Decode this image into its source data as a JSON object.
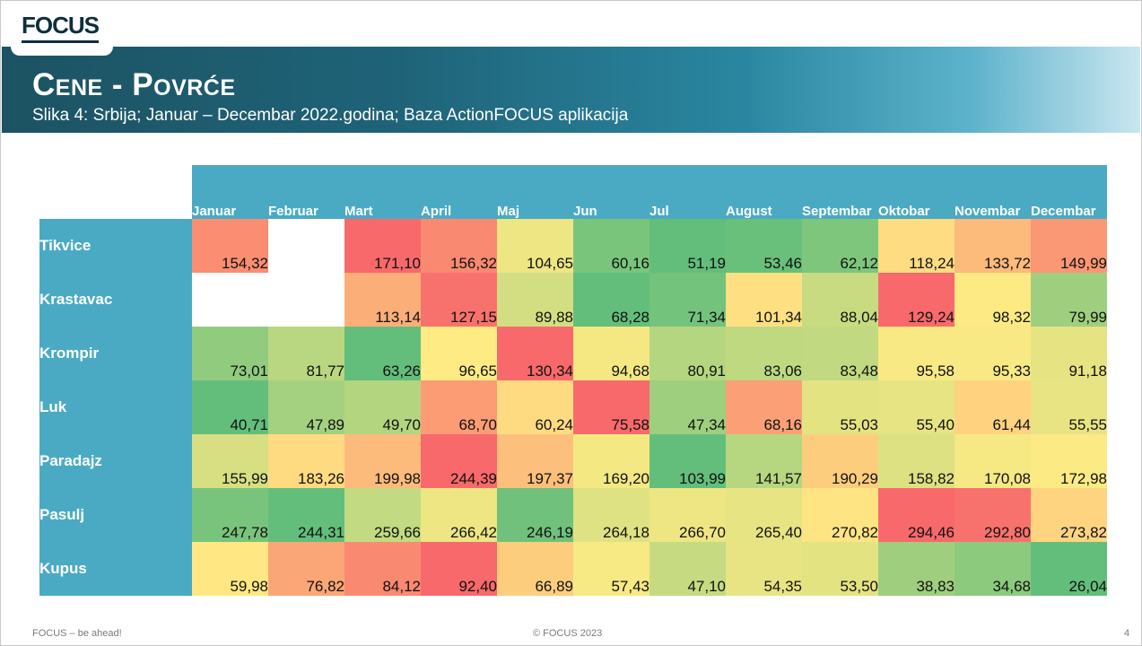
{
  "header": {
    "logo_text": "FOCUS",
    "title": "Cene - Povrće",
    "subtitle": "Slika 4: Srbija; Januar – Decembar 2022.godina; Baza ActionFOCUS aplikacija"
  },
  "footer": {
    "left": "FOCUS – be ahead!",
    "center": "© FOCUS 2023",
    "page_number": "4"
  },
  "colors": {
    "banner_dark": "#1c5363",
    "header_cell": "#4aaac4",
    "scale_low": "#63be7b",
    "scale_mid": "#ffeb84",
    "scale_high": "#f8696b"
  },
  "chart_data": {
    "type": "heatmap",
    "color_scale": "per-row: green (low) – yellow (mid) – red (high)",
    "columns": [
      "Januar",
      "Februar",
      "Mart",
      "April",
      "Maj",
      "Jun",
      "Jul",
      "August",
      "Septembar",
      "Oktobar",
      "Novembar",
      "Decembar"
    ],
    "rows": [
      {
        "label": "Tikvice",
        "values": [
          "154,32",
          "",
          "171,10",
          "156,32",
          "104,65",
          "60,16",
          "51,19",
          "53,46",
          "62,12",
          "118,24",
          "133,72",
          "149,99"
        ]
      },
      {
        "label": "Krastavac",
        "values": [
          "",
          "",
          "113,14",
          "127,15",
          "89,88",
          "68,28",
          "71,34",
          "101,34",
          "88,04",
          "129,24",
          "98,32",
          "79,99"
        ]
      },
      {
        "label": "Krompir",
        "values": [
          "73,01",
          "81,77",
          "63,26",
          "96,65",
          "130,34",
          "94,68",
          "80,91",
          "83,06",
          "83,48",
          "95,58",
          "95,33",
          "91,18"
        ]
      },
      {
        "label": "Luk",
        "values": [
          "40,71",
          "47,89",
          "49,70",
          "68,70",
          "60,24",
          "75,58",
          "47,34",
          "68,16",
          "55,03",
          "55,40",
          "61,44",
          "55,55"
        ]
      },
      {
        "label": "Paradajz",
        "values": [
          "155,99",
          "183,26",
          "199,98",
          "244,39",
          "197,37",
          "169,20",
          "103,99",
          "141,57",
          "190,29",
          "158,82",
          "170,08",
          "172,98"
        ]
      },
      {
        "label": "Pasulj",
        "values": [
          "247,78",
          "244,31",
          "259,66",
          "266,42",
          "246,19",
          "264,18",
          "266,70",
          "265,40",
          "270,82",
          "294,46",
          "292,80",
          "273,82"
        ]
      },
      {
        "label": "Kupus",
        "values": [
          "59,98",
          "76,82",
          "84,12",
          "92,40",
          "66,89",
          "57,43",
          "47,10",
          "54,35",
          "53,50",
          "38,83",
          "34,68",
          "26,04"
        ]
      }
    ]
  }
}
